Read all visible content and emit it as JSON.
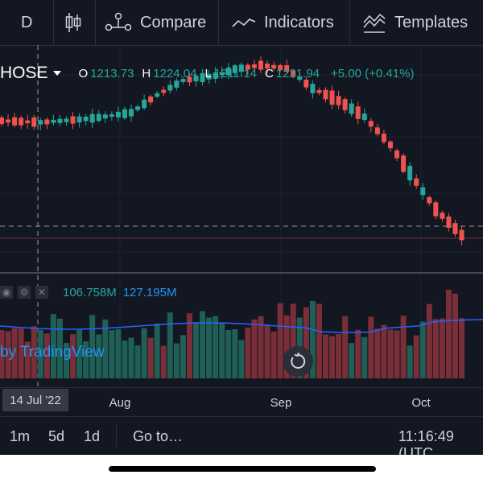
{
  "toolbar": {
    "interval": "D",
    "compare_label": "Compare",
    "indicators_label": "Indicators",
    "templates_label": "Templates"
  },
  "legend": {
    "symbol": "HOSE",
    "open_key": "O",
    "open": "1213.73",
    "high_key": "H",
    "high": "1224.04",
    "low_key": "L",
    "low": "1211.14",
    "close_key": "C",
    "close": "1221.94",
    "change": "+5.00 (+0.41%)"
  },
  "volume": {
    "value": "106.758M",
    "ma": "127.195M"
  },
  "watermark": "by TradingView",
  "xaxis": {
    "labels": [
      "Aug",
      "Sep",
      "Oct"
    ]
  },
  "crosshair_date": "14 Jul '22",
  "bottom_bar": {
    "range_1m": "1m",
    "range_5d": "5d",
    "range_1d": "1d",
    "goto": "Go to…",
    "clock": "11:16:49 (UTC"
  },
  "colors": {
    "up": "#26a69a",
    "down": "#ef5350",
    "background": "#131722",
    "volume_ma": "#2962ff"
  }
}
